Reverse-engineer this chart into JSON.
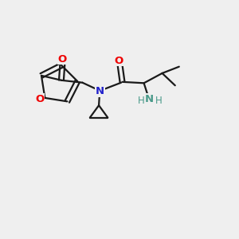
{
  "background_color": "#efefef",
  "bond_color": "#1a1a1a",
  "O_color": "#ee0000",
  "N_color": "#2222cc",
  "NH_color": "#4a9a8a",
  "figsize": [
    3.0,
    3.0
  ],
  "dpi": 100,
  "xlim": [
    0,
    10
  ],
  "ylim": [
    0,
    10
  ]
}
